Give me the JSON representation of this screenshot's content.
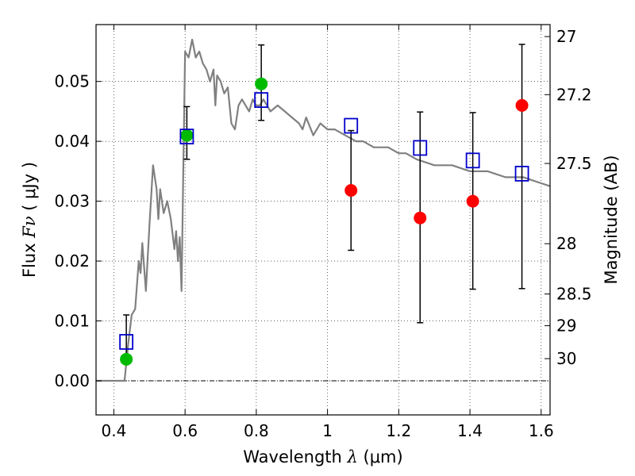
{
  "chart_data": {
    "type": "scatter",
    "xlabel": "Wavelength  λ (μm)",
    "xlabel_parts": {
      "text": "Wavelength  ",
      "math": "λ",
      "unit": " (μm)"
    },
    "ylabel": "Flux  Fν  ( μJy )",
    "ylabel_parts": {
      "text": "Flux  ",
      "math": "Fν",
      "unit": "  ( μJy )"
    },
    "y2label": "Magnitude (AB)",
    "xlim": [
      0.35,
      1.625
    ],
    "ylim": [
      -0.0057,
      0.0595
    ],
    "grid": true,
    "x_ticks": [
      {
        "value": 0.4,
        "label": "0.4"
      },
      {
        "value": 0.6,
        "label": "0.6"
      },
      {
        "value": 0.8,
        "label": "0.8"
      },
      {
        "value": 1.0,
        "label": "1"
      },
      {
        "value": 1.2,
        "label": "1.2"
      },
      {
        "value": 1.4,
        "label": "1.4"
      },
      {
        "value": 1.6,
        "label": "1.6"
      }
    ],
    "y_ticks": [
      {
        "value": 0.0,
        "label": "0.00"
      },
      {
        "value": 0.01,
        "label": "0.01"
      },
      {
        "value": 0.02,
        "label": "0.02"
      },
      {
        "value": 0.03,
        "label": "0.03"
      },
      {
        "value": 0.04,
        "label": "0.04"
      },
      {
        "value": 0.05,
        "label": "0.05"
      }
    ],
    "magnitude_ticks": [
      {
        "flux": 0.0575,
        "label": "27"
      },
      {
        "flux": 0.0478,
        "label": "27.2"
      },
      {
        "flux": 0.0363,
        "label": "27.5"
      },
      {
        "flux": 0.0229,
        "label": "28"
      },
      {
        "flux": 0.0145,
        "label": "28.5"
      },
      {
        "flux": 0.0092,
        "label": "29"
      },
      {
        "flux": 0.0037,
        "label": "30"
      }
    ],
    "model_spectrum": {
      "color": "#808080",
      "x": [
        0.35,
        0.43,
        0.44,
        0.45,
        0.46,
        0.47,
        0.475,
        0.48,
        0.49,
        0.5,
        0.51,
        0.52,
        0.525,
        0.53,
        0.54,
        0.55,
        0.56,
        0.57,
        0.575,
        0.58,
        0.585,
        0.59,
        0.595,
        0.6,
        0.61,
        0.62,
        0.63,
        0.64,
        0.65,
        0.66,
        0.67,
        0.68,
        0.685,
        0.69,
        0.7,
        0.71,
        0.72,
        0.73,
        0.74,
        0.75,
        0.76,
        0.77,
        0.78,
        0.79,
        0.8,
        0.81,
        0.82,
        0.84,
        0.86,
        0.88,
        0.9,
        0.92,
        0.93,
        0.94,
        0.96,
        0.98,
        1.0,
        1.02,
        1.05,
        1.08,
        1.1,
        1.13,
        1.15,
        1.17,
        1.2,
        1.22,
        1.25,
        1.3,
        1.35,
        1.4,
        1.45,
        1.5,
        1.55,
        1.6,
        1.625
      ],
      "y": [
        0.0,
        0.0,
        0.006,
        0.011,
        0.012,
        0.02,
        0.018,
        0.023,
        0.015,
        0.026,
        0.036,
        0.032,
        0.027,
        0.032,
        0.028,
        0.03,
        0.027,
        0.022,
        0.025,
        0.02,
        0.024,
        0.015,
        0.035,
        0.055,
        0.054,
        0.057,
        0.054,
        0.055,
        0.053,
        0.052,
        0.05,
        0.052,
        0.046,
        0.051,
        0.05,
        0.048,
        0.049,
        0.043,
        0.042,
        0.046,
        0.047,
        0.046,
        0.045,
        0.047,
        0.046,
        0.046,
        0.047,
        0.045,
        0.046,
        0.045,
        0.044,
        0.043,
        0.042,
        0.044,
        0.041,
        0.043,
        0.042,
        0.042,
        0.041,
        0.04,
        0.04,
        0.039,
        0.039,
        0.039,
        0.038,
        0.038,
        0.037,
        0.036,
        0.036,
        0.035,
        0.035,
        0.034,
        0.034,
        0.033,
        0.0325
      ]
    },
    "series": [
      {
        "marker": "circle",
        "color": "#00bb00",
        "x": [
          0.435,
          0.605,
          0.814
        ],
        "y": [
          0.0036,
          0.041,
          0.0496
        ],
        "err_low": [
          0.0035,
          0.037,
          0.0435
        ],
        "err_high": [
          0.011,
          0.0458,
          0.0561
        ]
      },
      {
        "marker": "circle",
        "color": "#ff0000",
        "x": [
          1.066,
          1.26,
          1.408,
          1.546
        ],
        "y": [
          0.0318,
          0.0272,
          0.03,
          0.046
        ],
        "err_low": [
          0.0218,
          0.0097,
          0.0153,
          0.0154
        ],
        "err_high": [
          0.0418,
          0.0449,
          0.0448,
          0.0562
        ]
      },
      {
        "marker": "open-square",
        "color": "#0000cc",
        "x": [
          0.435,
          0.605,
          0.814,
          1.066,
          1.26,
          1.408,
          1.546
        ],
        "y": [
          0.0065,
          0.0408,
          0.0469,
          0.0426,
          0.0389,
          0.0368,
          0.0346
        ]
      }
    ]
  }
}
